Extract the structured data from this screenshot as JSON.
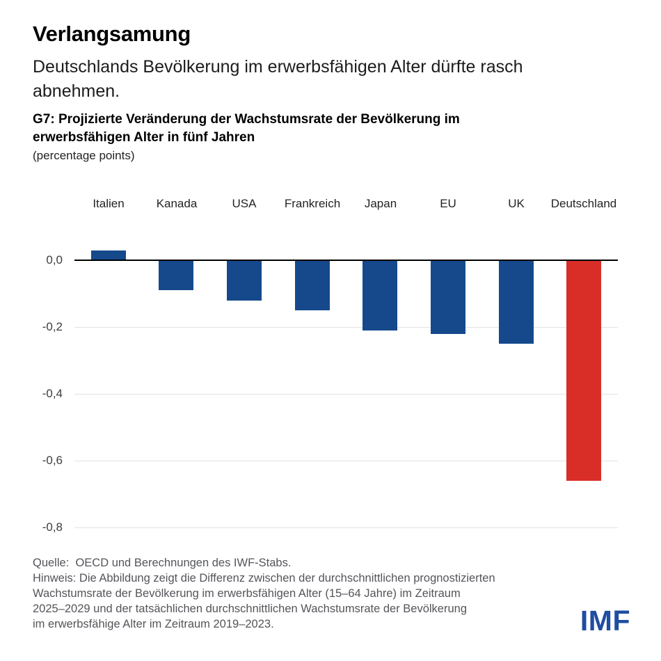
{
  "header": {
    "title": "Verlangsamung",
    "subtitle_lines": [
      "Deutschlands Bevölkerung im erwerbsfähigen Alter dürfte rasch",
      "abnehmen."
    ],
    "chart_title_lines": [
      "G7: Projizierte Veränderung der Wachstumsrate der Bevölkerung im",
      "erwerbsfähigen Alter in fünf Jahren"
    ],
    "unit_label": "(percentage points)"
  },
  "chart_data": {
    "type": "bar",
    "title": "G7: Projizierte Veränderung der Wachstumsrate der Bevölkerung im erwerbsfähigen Alter in fünf Jahren",
    "ylabel": "percentage points",
    "categories": [
      "Italien",
      "Kanada",
      "USA",
      "Frankreich",
      "Japan",
      "EU",
      "UK",
      "Deutschland"
    ],
    "values": [
      0.03,
      -0.09,
      -0.12,
      -0.15,
      -0.21,
      -0.22,
      -0.25,
      -0.66
    ],
    "highlight_category": "Deutschland",
    "bar_color": "#15498C",
    "highlight_color": "#D92D27",
    "ytick_values": [
      0,
      -0.2,
      -0.4,
      -0.6,
      -0.8
    ],
    "ytick_labels": [
      "0,0",
      "-0,2",
      "-0,4",
      "-0,6",
      "-0,8"
    ],
    "ylim": [
      0.05,
      -0.8
    ],
    "grid": "horizontal-light",
    "legend": "none"
  },
  "footer": {
    "source": "Quelle:  OECD und Berechnungen des IWF-Stabs.",
    "note_lines": [
      "Hinweis: Die Abbildung zeigt die Differenz zwischen der durchschnittlichen prognostizierten",
      "Wachstumsrate der Bevölkerung im erwerbsfähigen Alter (15–64 Jahre) im Zeitraum",
      "2025–2029 und der tatsächlichen durchschnittlichen Wachstumsrate der Bevölkerung",
      "im erwerbsfähige Alter im Zeitraum 2019–2023."
    ],
    "logo": "IMF",
    "logo_color": "#1F4DA1"
  }
}
